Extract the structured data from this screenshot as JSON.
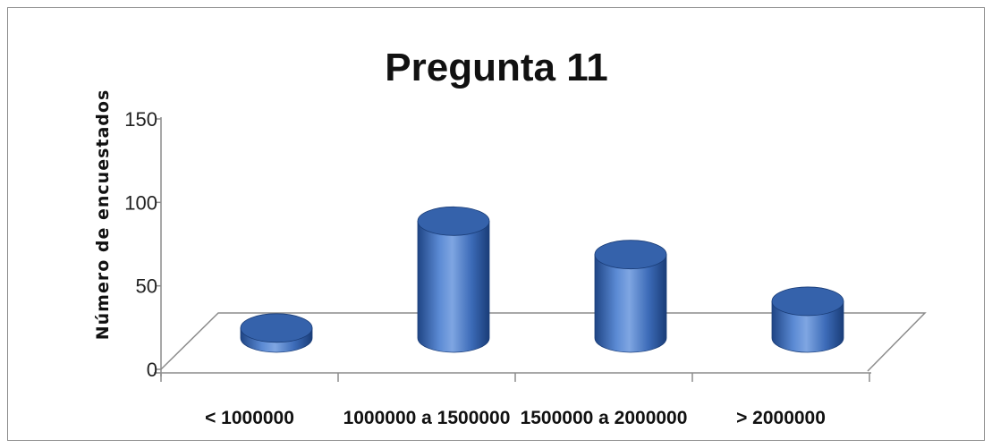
{
  "chart_data": {
    "type": "bar",
    "style": "3d-cylinder",
    "title": "Pregunta 11",
    "xlabel": "",
    "ylabel": "Número de encuestados",
    "categories": [
      "< 1000000",
      "1000000 a 1500000",
      "1500000 a 2000000",
      "> 2000000"
    ],
    "values": [
      6,
      70,
      50,
      22
    ],
    "ylim": [
      0,
      150
    ],
    "yticks": [
      "0",
      "50",
      "100",
      "150"
    ],
    "grid": false,
    "legend": "none",
    "colors": {
      "bar_fill": "#4a78c2",
      "bar_dark": "#1f4585",
      "bar_light": "#7fa6e2",
      "top_fill": "#3562ab",
      "axis": "#8c8c8c"
    }
  }
}
